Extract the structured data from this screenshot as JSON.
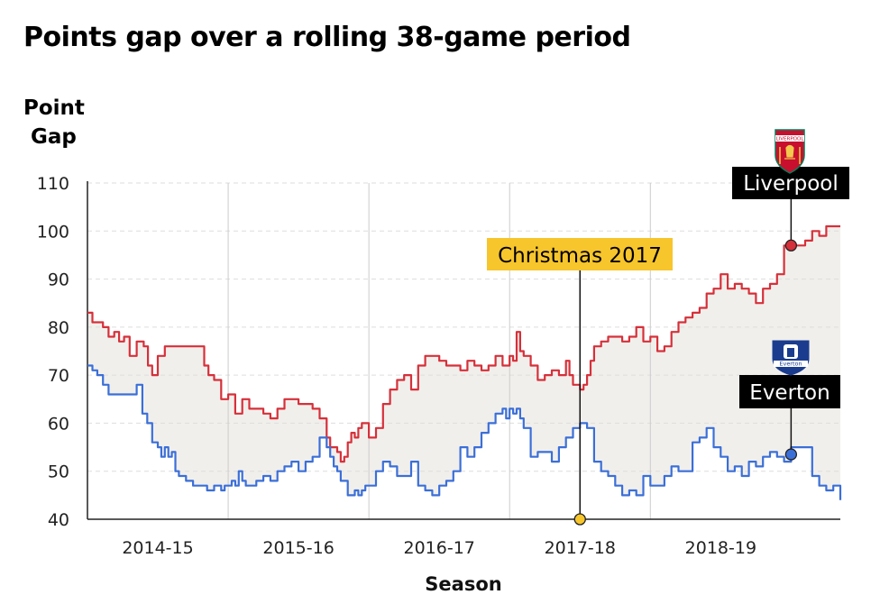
{
  "chart_data": {
    "type": "line",
    "title": "Points gap over a rolling 38-game period",
    "ylabel": [
      "Point",
      "Gap"
    ],
    "xlabel": "Season",
    "ylim": [
      40,
      110
    ],
    "yticks": [
      40,
      50,
      60,
      70,
      80,
      90,
      100,
      110
    ],
    "xlim": [
      0,
      10.7
    ],
    "categories": [
      "2014-15",
      "2015-16",
      "2016-17",
      "2017-18",
      "2018-19"
    ],
    "category_positions": [
      1,
      3,
      5,
      7,
      9
    ],
    "season_dividers": [
      2,
      4,
      6,
      8
    ],
    "series": [
      {
        "name": "Liverpool",
        "color": "#d6303a",
        "x": [
          0,
          0.07,
          0.14,
          0.22,
          0.3,
          0.38,
          0.45,
          0.52,
          0.6,
          0.7,
          0.8,
          0.86,
          0.92,
          1.0,
          1.1,
          1.2,
          1.3,
          1.38,
          1.45,
          1.52,
          1.6,
          1.66,
          1.72,
          1.8,
          1.9,
          2.0,
          2.1,
          2.2,
          2.3,
          2.35,
          2.42,
          2.5,
          2.6,
          2.7,
          2.8,
          2.9,
          3.0,
          3.1,
          3.2,
          3.3,
          3.4,
          3.45,
          3.5,
          3.55,
          3.6,
          3.65,
          3.7,
          3.75,
          3.8,
          3.85,
          3.9,
          3.95,
          4.0,
          4.05,
          4.1,
          4.2,
          4.3,
          4.4,
          4.5,
          4.6,
          4.7,
          4.8,
          4.9,
          5.0,
          5.1,
          5.2,
          5.3,
          5.4,
          5.5,
          5.6,
          5.7,
          5.8,
          5.9,
          6.0,
          6.05,
          6.1,
          6.15,
          6.2,
          6.3,
          6.4,
          6.5,
          6.6,
          6.7,
          6.8,
          6.85,
          6.9,
          7.0,
          7.05,
          7.1,
          7.15,
          7.2,
          7.3,
          7.4,
          7.5,
          7.6,
          7.7,
          7.8,
          7.9,
          8.0,
          8.1,
          8.2,
          8.3,
          8.4,
          8.5,
          8.6,
          8.7,
          8.8,
          8.9,
          9.0,
          9.1,
          9.2,
          9.3,
          9.4,
          9.5,
          9.6,
          9.7,
          9.8,
          9.9,
          10.0,
          10.1,
          10.2,
          10.3,
          10.4,
          10.5,
          10.6,
          10.7
        ],
        "values": [
          83,
          81,
          81,
          80,
          78,
          79,
          77,
          78,
          74,
          77,
          76,
          72,
          70,
          74,
          76,
          76,
          76,
          76,
          76,
          76,
          76,
          72,
          70,
          69,
          65,
          66,
          62,
          65,
          63,
          63,
          63,
          62,
          61,
          63,
          65,
          65,
          64,
          64,
          63,
          61,
          57,
          55,
          55,
          54,
          52,
          53,
          56,
          58,
          57,
          59,
          60,
          60,
          57,
          57,
          59,
          64,
          67,
          69,
          70,
          67,
          72,
          74,
          74,
          73,
          72,
          72,
          71,
          73,
          72,
          71,
          72,
          74,
          72,
          74,
          73,
          79,
          75,
          74,
          72,
          69,
          70,
          71,
          70,
          73,
          70,
          68,
          67,
          68,
          70,
          73,
          76,
          77,
          78,
          78,
          77,
          78,
          80,
          77,
          78,
          75,
          76,
          79,
          81,
          82,
          83,
          84,
          87,
          88,
          91,
          88,
          89,
          88,
          87,
          85,
          88,
          89,
          91,
          97,
          97,
          97,
          98,
          100,
          99,
          101,
          101,
          101
        ]
      },
      {
        "name": "Everton",
        "color": "#3b6fd8",
        "x": [
          0,
          0.07,
          0.14,
          0.22,
          0.3,
          0.4,
          0.5,
          0.6,
          0.7,
          0.78,
          0.85,
          0.92,
          1.0,
          1.05,
          1.1,
          1.15,
          1.2,
          1.25,
          1.3,
          1.35,
          1.4,
          1.45,
          1.5,
          1.55,
          1.6,
          1.7,
          1.8,
          1.85,
          1.9,
          1.95,
          2.0,
          2.05,
          2.1,
          2.15,
          2.2,
          2.25,
          2.3,
          2.4,
          2.5,
          2.6,
          2.7,
          2.8,
          2.9,
          3.0,
          3.1,
          3.2,
          3.3,
          3.4,
          3.45,
          3.5,
          3.55,
          3.6,
          3.7,
          3.8,
          3.85,
          3.9,
          3.95,
          4.0,
          4.1,
          4.2,
          4.3,
          4.4,
          4.5,
          4.6,
          4.7,
          4.8,
          4.9,
          5.0,
          5.1,
          5.2,
          5.3,
          5.4,
          5.5,
          5.6,
          5.7,
          5.8,
          5.9,
          5.95,
          6.0,
          6.05,
          6.1,
          6.15,
          6.2,
          6.3,
          6.4,
          6.5,
          6.6,
          6.7,
          6.8,
          6.9,
          7.0,
          7.1,
          7.2,
          7.3,
          7.4,
          7.5,
          7.6,
          7.7,
          7.8,
          7.9,
          8.0,
          8.1,
          8.2,
          8.3,
          8.4,
          8.5,
          8.6,
          8.7,
          8.8,
          8.9,
          9.0,
          9.1,
          9.2,
          9.3,
          9.4,
          9.5,
          9.6,
          9.7,
          9.8,
          9.9,
          10.0,
          10.1,
          10.2,
          10.3,
          10.4,
          10.5,
          10.6,
          10.7
        ],
        "values": [
          72,
          71,
          70,
          68,
          66,
          66,
          66,
          66,
          68,
          62,
          60,
          56,
          55,
          53,
          55,
          53,
          54,
          50,
          49,
          49,
          48,
          48,
          47,
          47,
          47,
          46,
          47,
          47,
          46,
          47,
          47,
          48,
          47,
          50,
          48,
          47,
          47,
          48,
          49,
          48,
          50,
          51,
          52,
          50,
          52,
          53,
          57,
          55,
          53,
          51,
          50,
          48,
          45,
          46,
          45,
          46,
          47,
          47,
          50,
          52,
          51,
          49,
          49,
          52,
          47,
          46,
          45,
          47,
          48,
          50,
          55,
          53,
          55,
          58,
          60,
          62,
          63,
          61,
          63,
          62,
          63,
          61,
          59,
          53,
          54,
          54,
          52,
          55,
          57,
          59,
          60,
          59,
          52,
          50,
          49,
          47,
          45,
          46,
          45,
          49,
          47,
          47,
          49,
          51,
          50,
          50,
          56,
          57,
          59,
          55,
          53,
          50,
          51,
          49,
          52,
          51,
          53,
          54,
          53,
          52,
          55,
          55,
          55,
          49,
          47,
          46,
          47,
          44
        ]
      }
    ],
    "annotations": [
      {
        "label": "Christmas 2017",
        "x": 7.0,
        "bg": "#f7c52c",
        "fg": "#000000"
      },
      {
        "label": "Liverpool",
        "x": 10.0,
        "y": 97,
        "bg": "#000000",
        "fg": "#ffffff"
      },
      {
        "label": "Everton",
        "x": 10.0,
        "y": 53.5,
        "bg": "#000000",
        "fg": "#ffffff"
      }
    ],
    "logos": [
      {
        "name": "Liverpool FC crest",
        "text": "LIVERPOOL"
      },
      {
        "name": "Everton FC crest",
        "text": "Everton"
      }
    ],
    "fill_color": "#f1efeb",
    "gridline_color": "#dddddd"
  }
}
